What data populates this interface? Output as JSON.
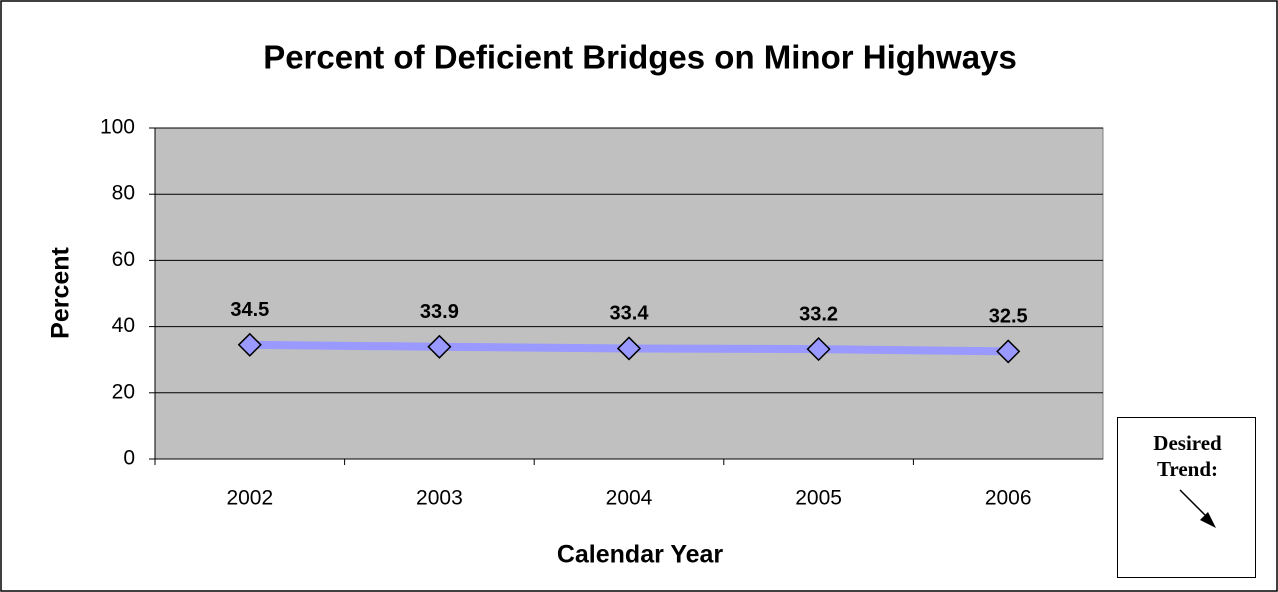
{
  "chart_data": {
    "type": "line",
    "title": "Percent of Deficient Bridges on Minor Highways",
    "x_label": "Calendar Year",
    "y_label": "Percent",
    "categories": [
      "2002",
      "2003",
      "2004",
      "2005",
      "2006"
    ],
    "series": [
      {
        "name": "Percent",
        "color": "#9999ff",
        "values": [
          34.5,
          33.9,
          33.4,
          33.2,
          32.5
        ]
      }
    ],
    "ylim": [
      0,
      100
    ],
    "yticks": [
      0,
      20,
      40,
      60,
      80,
      100
    ],
    "grid": true,
    "plot_background": "#c0c0c0",
    "annotation": "Desired Trend:"
  }
}
